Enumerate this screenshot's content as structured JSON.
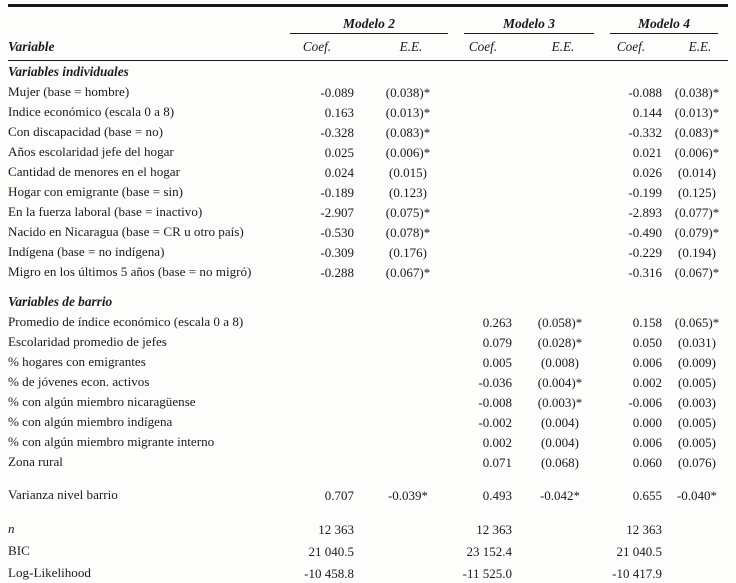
{
  "table": {
    "variable_header": "Variable",
    "models": [
      {
        "name": "Modelo 2"
      },
      {
        "name": "Modelo 3"
      },
      {
        "name": "Modelo 4"
      }
    ],
    "subheaders": {
      "coef": "Coef.",
      "ee": "E.E."
    },
    "rows": [
      {
        "type": "section",
        "label": "Variables individuales"
      },
      {
        "type": "data",
        "label": "Mujer (base = hombre)",
        "cells": [
          "-0.089",
          "(0.038)*",
          "",
          "",
          "-0.088",
          "(0.038)*"
        ]
      },
      {
        "type": "data",
        "label": "Indice económico (escala 0 a 8)",
        "cells": [
          "0.163",
          "(0.013)*",
          "",
          "",
          "0.144",
          "(0.013)*"
        ]
      },
      {
        "type": "data",
        "label": "Con discapacidad (base = no)",
        "cells": [
          "-0.328",
          "(0.083)*",
          "",
          "",
          "-0.332",
          "(0.083)*"
        ]
      },
      {
        "type": "data",
        "label": "Años escolaridad jefe del hogar",
        "cells": [
          "0.025",
          "(0.006)*",
          "",
          "",
          "0.021",
          "(0.006)*"
        ]
      },
      {
        "type": "data",
        "label": "Cantidad de menores en el hogar",
        "cells": [
          "0.024",
          "(0.015)",
          "",
          "",
          "0.026",
          "(0.014)"
        ]
      },
      {
        "type": "data",
        "label": "Hogar con emigrante (base = sin)",
        "cells": [
          "-0.189",
          "(0.123)",
          "",
          "",
          "-0.199",
          "(0.125)"
        ]
      },
      {
        "type": "data",
        "label": "En la fuerza laboral (base =  inactivo)",
        "cells": [
          "-2.907",
          "(0.075)*",
          "",
          "",
          "-2.893",
          "(0.077)*"
        ]
      },
      {
        "type": "data",
        "label": "Nacido en Nicaragua (base = CR u otro país)",
        "cells": [
          "-0.530",
          "(0.078)*",
          "",
          "",
          "-0.490",
          "(0.079)*"
        ]
      },
      {
        "type": "data",
        "label": "Indígena (base = no indígena)",
        "cells": [
          "-0.309",
          "(0.176)",
          "",
          "",
          "-0.229",
          "(0.194)"
        ]
      },
      {
        "type": "data",
        "label": "Migro en los últimos 5 años (base = no migró)",
        "cells": [
          "-0.288",
          "(0.067)*",
          "",
          "",
          "-0.316",
          "(0.067)*"
        ]
      },
      {
        "type": "gap",
        "size": "sm"
      },
      {
        "type": "section",
        "label": "Variables de barrio"
      },
      {
        "type": "data",
        "label": "Promedio de índice económico (escala 0 a 8)",
        "cells": [
          "",
          "",
          "0.263",
          "(0.058)*",
          "0.158",
          "(0.065)*"
        ]
      },
      {
        "type": "data",
        "label": "Escolaridad promedio de jefes",
        "cells": [
          "",
          "",
          "0.079",
          "(0.028)*",
          "0.050",
          "(0.031)"
        ]
      },
      {
        "type": "data",
        "label": "% hogares con emigrantes",
        "cells": [
          "",
          "",
          "0.005",
          "(0.008)",
          "0.006",
          "(0.009)"
        ]
      },
      {
        "type": "data",
        "label": "% de jóvenes econ. activos",
        "cells": [
          "",
          "",
          "-0.036",
          "(0.004)*",
          "0.002",
          "(0.005)"
        ]
      },
      {
        "type": "data",
        "label": "% con algún miembro nicaragüense",
        "cells": [
          "",
          "",
          "-0.008",
          "(0.003)*",
          "-0.006",
          "(0.003)"
        ]
      },
      {
        "type": "data",
        "label": "% con algún miembro indígena",
        "cells": [
          "",
          "",
          "-0.002",
          "(0.004)",
          "0.000",
          "(0.005)"
        ]
      },
      {
        "type": "data",
        "label": "% con algún miembro migrante interno",
        "cells": [
          "",
          "",
          "0.002",
          "(0.004)",
          "0.006",
          "(0.005)"
        ]
      },
      {
        "type": "data",
        "label": "Zona rural",
        "cells": [
          "",
          "",
          "0.071",
          "(0.068)",
          "0.060",
          "(0.076)"
        ]
      },
      {
        "type": "gap",
        "size": "md"
      },
      {
        "type": "data",
        "label": "Varianza nivel barrio",
        "cells": [
          "0.707",
          "-0.039*",
          "0.493",
          "-0.042*",
          "0.655",
          "-0.040*"
        ]
      },
      {
        "type": "gap",
        "size": "md"
      },
      {
        "type": "stat",
        "label": "n",
        "italic": true,
        "cells": [
          "12 363",
          "",
          "12 363",
          "",
          "12 363",
          ""
        ]
      },
      {
        "type": "stat",
        "label": "BIC",
        "cells": [
          "21 040.5",
          "",
          "23 152.4",
          "",
          "21 040.5",
          ""
        ]
      },
      {
        "type": "stat",
        "label": "Log-Likelihood",
        "cells": [
          "-10 458.8",
          "",
          "-11 525.0",
          "",
          "-10 417.9",
          ""
        ]
      }
    ]
  }
}
